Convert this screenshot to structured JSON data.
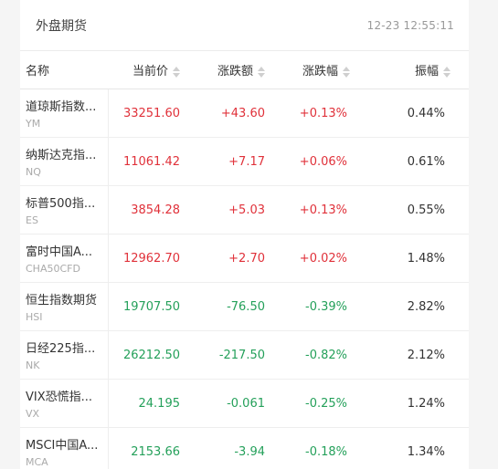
{
  "header": {
    "title": "外盘期货",
    "time": "12-23 12:55:11"
  },
  "columns": {
    "name": "名称",
    "price": "当前价",
    "change": "涨跌额",
    "change_pct": "涨跌幅",
    "amplitude": "振幅"
  },
  "colors": {
    "up": "#e0313a",
    "down": "#24a05a"
  },
  "rows": [
    {
      "name": "道琼斯指数...",
      "code": "YM",
      "price": "33251.60",
      "change": "+43.60",
      "change_pct": "+0.13%",
      "amplitude": "0.44%",
      "trend": "up"
    },
    {
      "name": "纳斯达克指...",
      "code": "NQ",
      "price": "11061.42",
      "change": "+7.17",
      "change_pct": "+0.06%",
      "amplitude": "0.61%",
      "trend": "up"
    },
    {
      "name": "标普500指...",
      "code": "ES",
      "price": "3854.28",
      "change": "+5.03",
      "change_pct": "+0.13%",
      "amplitude": "0.55%",
      "trend": "up"
    },
    {
      "name": "富时中国A...",
      "code": "CHA50CFD",
      "price": "12962.70",
      "change": "+2.70",
      "change_pct": "+0.02%",
      "amplitude": "1.48%",
      "trend": "up"
    },
    {
      "name": "恒生指数期货",
      "code": "HSI",
      "price": "19707.50",
      "change": "-76.50",
      "change_pct": "-0.39%",
      "amplitude": "2.82%",
      "trend": "down"
    },
    {
      "name": "日经225指...",
      "code": "NK",
      "price": "26212.50",
      "change": "-217.50",
      "change_pct": "-0.82%",
      "amplitude": "2.12%",
      "trend": "down"
    },
    {
      "name": "VIX恐慌指...",
      "code": "VX",
      "price": "24.195",
      "change": "-0.061",
      "change_pct": "-0.25%",
      "amplitude": "1.24%",
      "trend": "down"
    },
    {
      "name": "MSCI中国A...",
      "code": "MCA",
      "price": "2153.66",
      "change": "-3.94",
      "change_pct": "-0.18%",
      "amplitude": "1.34%",
      "trend": "down"
    }
  ]
}
